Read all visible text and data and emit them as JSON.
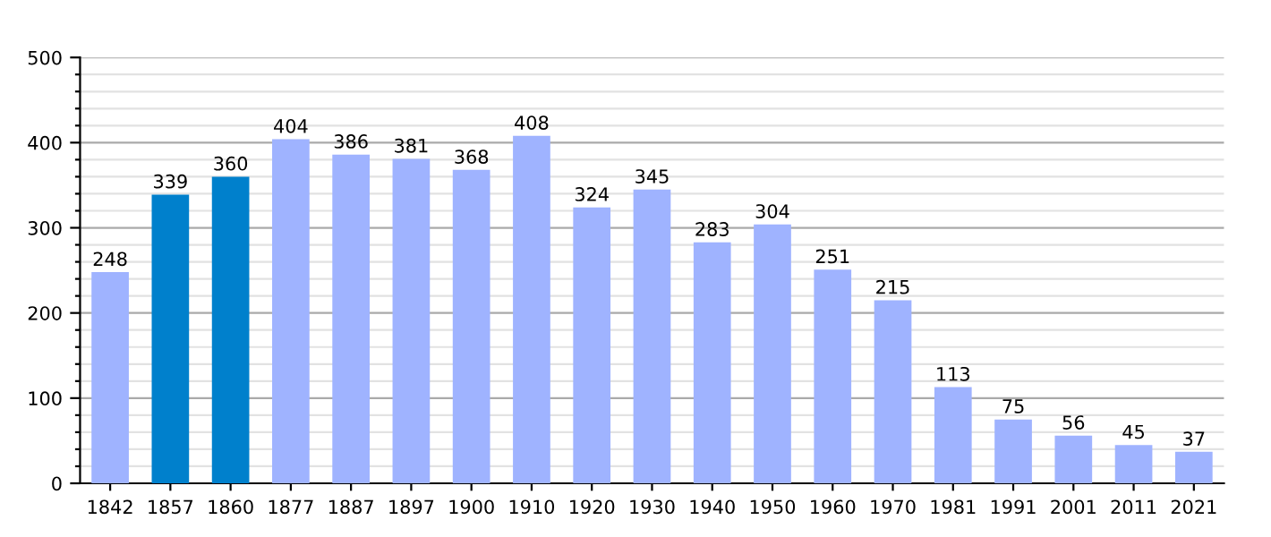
{
  "chart_data": {
    "type": "bar",
    "categories": [
      "1842",
      "1857",
      "1860",
      "1877",
      "1887",
      "1897",
      "1900",
      "1910",
      "1920",
      "1930",
      "1940",
      "1950",
      "1960",
      "1970",
      "1981",
      "1991",
      "2001",
      "2011",
      "2021"
    ],
    "values": [
      248,
      339,
      360,
      404,
      386,
      381,
      368,
      408,
      324,
      345,
      283,
      304,
      251,
      215,
      113,
      75,
      56,
      45,
      37
    ],
    "colors": [
      "#9fb3ff",
      "#0080cc",
      "#0080cc",
      "#9fb3ff",
      "#9fb3ff",
      "#9fb3ff",
      "#9fb3ff",
      "#9fb3ff",
      "#9fb3ff",
      "#9fb3ff",
      "#9fb3ff",
      "#9fb3ff",
      "#9fb3ff",
      "#9fb3ff",
      "#9fb3ff",
      "#9fb3ff",
      "#9fb3ff",
      "#9fb3ff",
      "#9fb3ff"
    ],
    "ylim": [
      0,
      500
    ],
    "yticks": [
      0,
      {
        "value": 20,
        "label": null
      },
      {
        "value": 40,
        "label": null
      },
      {
        "value": 60,
        "label": null
      },
      {
        "value": 80,
        "label": null
      },
      100,
      {
        "value": 120,
        "label": null
      },
      {
        "value": 140,
        "label": null
      },
      {
        "value": 160,
        "label": null
      },
      {
        "value": 180,
        "label": null
      },
      200,
      {
        "value": 220,
        "label": null
      },
      {
        "value": 240,
        "label": null
      },
      {
        "value": 260,
        "label": null
      },
      {
        "value": 280,
        "label": null
      },
      300,
      {
        "value": 320,
        "label": null
      },
      {
        "value": 340,
        "label": null
      },
      {
        "value": 360,
        "label": null
      },
      {
        "value": 380,
        "label": null
      },
      400,
      {
        "value": 420,
        "label": null
      },
      {
        "value": 440,
        "label": null
      },
      {
        "value": 460,
        "label": null
      },
      {
        "value": 480,
        "label": null
      },
      500
    ],
    "grid": "y",
    "data_labels": true
  }
}
